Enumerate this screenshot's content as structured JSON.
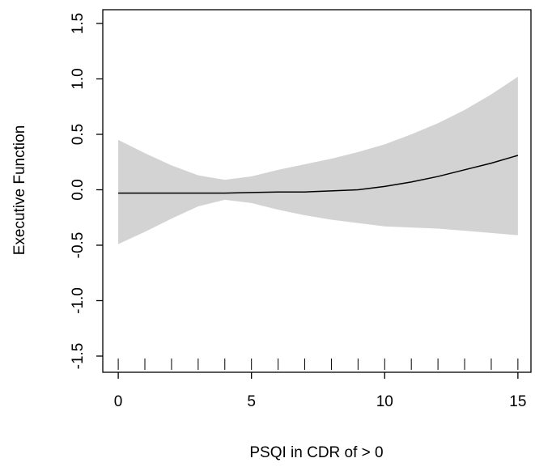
{
  "chart_data": {
    "type": "line",
    "xlabel": "PSQI in CDR of > 0",
    "ylabel": "Executive Function",
    "x": [
      0,
      1,
      2,
      3,
      4,
      5,
      6,
      7,
      8,
      9,
      10,
      11,
      12,
      13,
      14,
      15
    ],
    "y": [
      -0.03,
      -0.03,
      -0.03,
      -0.03,
      -0.03,
      -0.025,
      -0.02,
      -0.02,
      -0.01,
      0.0,
      0.03,
      0.07,
      0.12,
      0.18,
      0.24,
      0.31
    ],
    "upper": [
      0.45,
      0.33,
      0.22,
      0.13,
      0.09,
      0.12,
      0.18,
      0.23,
      0.28,
      0.34,
      0.41,
      0.5,
      0.6,
      0.72,
      0.86,
      1.02
    ],
    "lower": [
      -0.49,
      -0.38,
      -0.26,
      -0.15,
      -0.09,
      -0.12,
      -0.18,
      -0.23,
      -0.27,
      -0.3,
      -0.33,
      -0.34,
      -0.35,
      -0.37,
      -0.39,
      -0.41
    ],
    "rug": [
      0,
      1,
      2,
      3,
      4,
      5,
      6,
      7,
      8,
      9,
      10,
      11,
      12,
      13,
      14,
      15
    ],
    "color": "#000000",
    "band_color": "#d3d3d3",
    "xlim": [
      -0.58,
      15.49
    ],
    "ylim": [
      -1.646,
      1.624
    ],
    "xticks": [
      0,
      5,
      10,
      15
    ],
    "yticks": [
      -1.5,
      -1.0,
      -0.5,
      0.0,
      0.5,
      1.0,
      1.5
    ]
  }
}
